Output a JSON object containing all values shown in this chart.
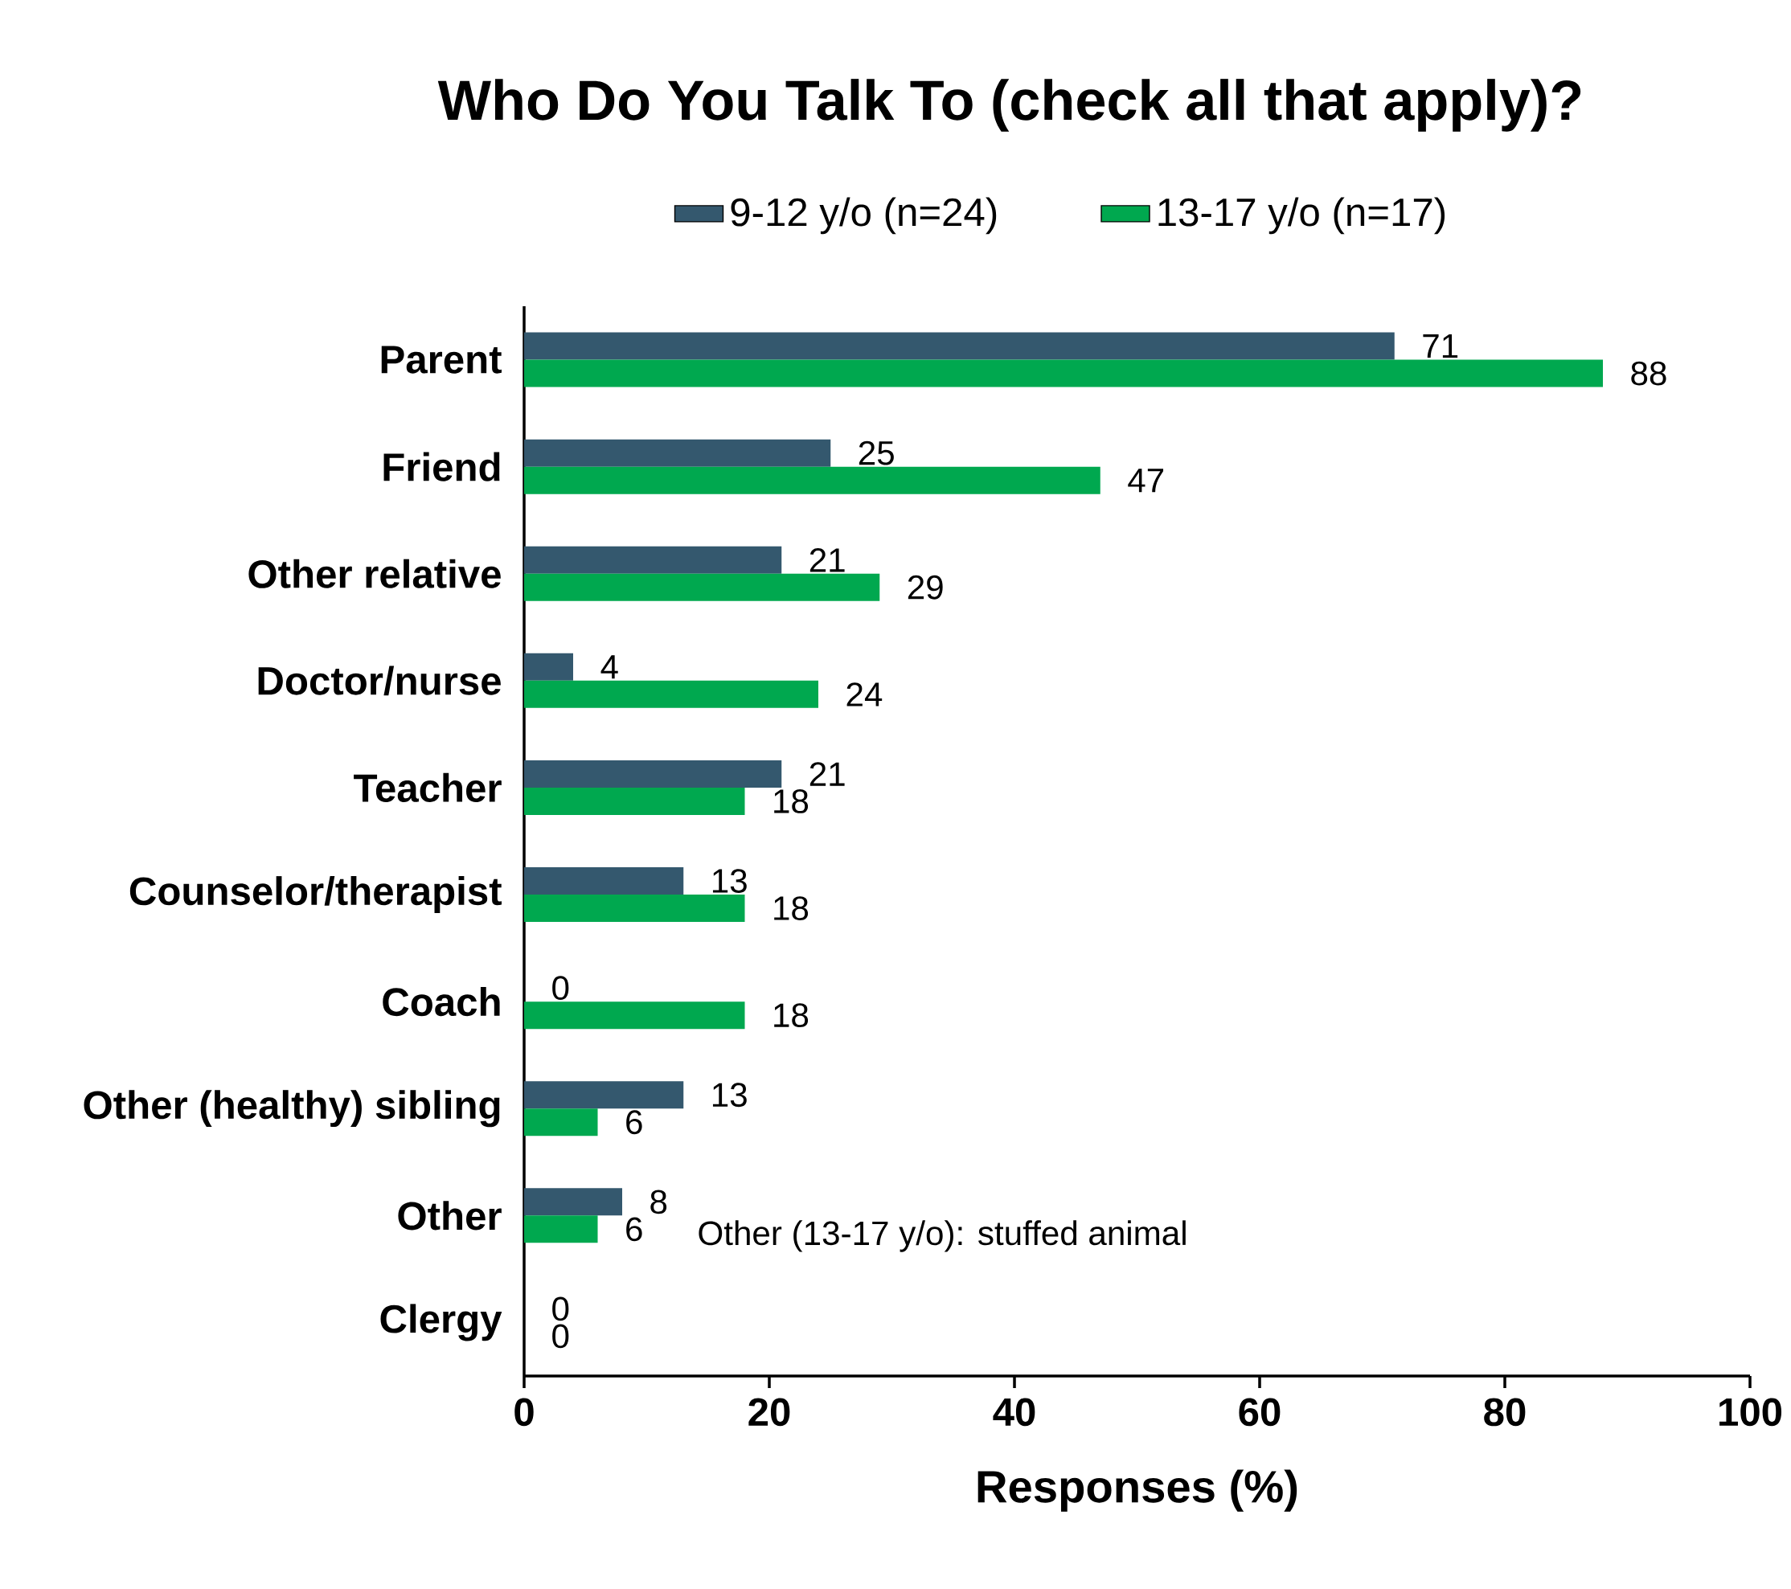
{
  "chart_data": {
    "type": "bar",
    "orientation": "horizontal",
    "title": "Who Do You Talk To (check all that apply)?",
    "xlabel": "Responses (%)",
    "categories": [
      "Parent",
      "Friend",
      "Other relative",
      "Doctor/nurse",
      "Teacher",
      "Counselor/therapist",
      "Coach",
      "Other (healthy) sibling",
      "Other",
      "Clergy"
    ],
    "series": [
      {
        "name": "9-12 y/o (n=24)",
        "color": "#34586e",
        "values": [
          71,
          25,
          21,
          4,
          21,
          13,
          0,
          13,
          8,
          0
        ]
      },
      {
        "name": "13-17 y/o (n=17)",
        "color": "#00a84f",
        "values": [
          88,
          47,
          29,
          24,
          18,
          18,
          18,
          6,
          6,
          0
        ]
      }
    ],
    "xlim": [
      0,
      100
    ],
    "xticks": [
      0,
      20,
      40,
      60,
      80,
      100
    ],
    "data_labels": true,
    "legend": "top",
    "grid": false,
    "annotations": [
      "Other (13-17 y/o): stuffed animal"
    ]
  }
}
